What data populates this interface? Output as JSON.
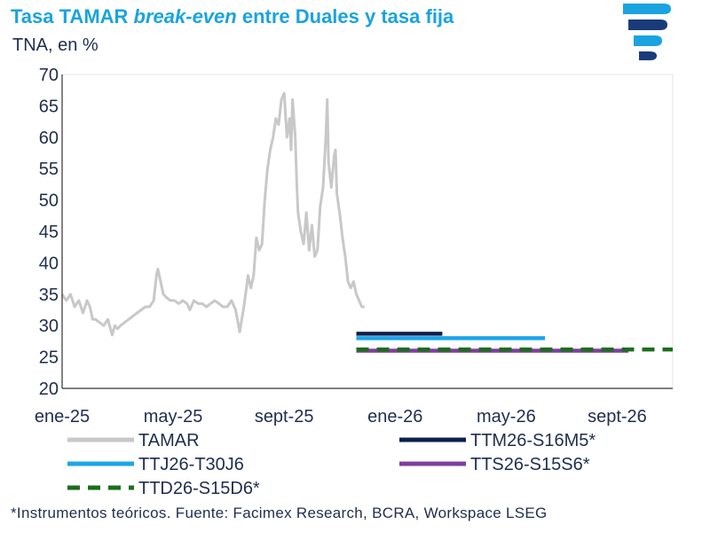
{
  "header": {
    "title_pre": "Tasa TAMAR ",
    "title_em": "break-even",
    "title_post": " entre Duales y tasa fija",
    "subtitle": "TNA, en %",
    "logo_icon": "facimex-logo-icon"
  },
  "footnote": "*Instrumentos teóricos. Fuente: Facimex Research, BCRA, Workspace LSEG",
  "chart_data": {
    "type": "line",
    "title": "Tasa TAMAR break-even entre Duales y tasa fija",
    "ylabel": "TNA, en %",
    "xlabel": "",
    "ylim": [
      20,
      70
    ],
    "yticks": [
      20,
      25,
      30,
      35,
      40,
      45,
      50,
      55,
      60,
      65,
      70
    ],
    "xlim": [
      0,
      22.0
    ],
    "xtick_labels": [
      {
        "label": "ene-25",
        "month": 0
      },
      {
        "label": "may-25",
        "month": 4
      },
      {
        "label": "sept-25",
        "month": 8
      },
      {
        "label": "ene-26",
        "month": 12
      },
      {
        "label": "may-26",
        "month": 16
      },
      {
        "label": "sept-26",
        "month": 20
      }
    ],
    "series": [
      {
        "name": "TAMAR",
        "color": "#c8c8c8",
        "style": "solid",
        "x": [
          0,
          0.15,
          0.3,
          0.45,
          0.6,
          0.75,
          0.9,
          1.0,
          1.1,
          1.2,
          1.35,
          1.5,
          1.65,
          1.8,
          1.9,
          2.0,
          2.1,
          2.25,
          2.4,
          2.55,
          2.7,
          2.85,
          3.0,
          3.15,
          3.3,
          3.4,
          3.45,
          3.55,
          3.65,
          3.75,
          3.9,
          4.05,
          4.2,
          4.35,
          4.5,
          4.6,
          4.75,
          4.9,
          5.05,
          5.2,
          5.35,
          5.5,
          5.65,
          5.8,
          5.95,
          6.1,
          6.25,
          6.4,
          6.55,
          6.7,
          6.8,
          6.9,
          7.0,
          7.1,
          7.2,
          7.3,
          7.4,
          7.5,
          7.6,
          7.7,
          7.8,
          7.9,
          8.0,
          8.1,
          8.2,
          8.25,
          8.3,
          8.4,
          8.45,
          8.5,
          8.6,
          8.7,
          8.8,
          8.9,
          9.0,
          9.1,
          9.2,
          9.3,
          9.4,
          9.5,
          9.55,
          9.6,
          9.7,
          9.8,
          9.85,
          9.9,
          10.0,
          10.1,
          10.2,
          10.3,
          10.4,
          10.5,
          10.6,
          10.7,
          10.8,
          10.9
        ],
        "y": [
          35,
          34,
          35,
          33,
          34,
          32,
          34,
          33,
          31,
          31,
          30.5,
          30,
          31,
          28.5,
          30,
          29.5,
          30,
          30.5,
          31,
          31.5,
          32,
          32.5,
          33,
          33,
          34,
          38,
          39,
          37,
          35,
          34.5,
          34,
          34,
          33.5,
          34,
          33.5,
          32.5,
          34,
          33.5,
          33.5,
          33,
          33.5,
          34,
          33.5,
          33,
          33,
          34,
          32.5,
          29,
          33,
          38,
          36,
          38,
          44,
          42,
          43,
          50,
          55,
          58,
          60,
          63,
          62,
          66,
          67,
          60,
          63,
          58,
          66,
          60,
          53,
          48,
          45,
          43,
          48,
          42,
          46,
          41,
          42,
          49,
          52,
          60,
          66,
          56,
          52,
          57,
          58,
          51,
          48,
          44,
          41,
          37,
          36,
          37,
          35,
          34,
          33,
          33
        ]
      },
      {
        "name": "TTM26-S16M5*",
        "color": "#0e1f4d",
        "style": "solid",
        "x": [
          10.6,
          13.7
        ],
        "y": [
          28.7,
          28.7
        ]
      },
      {
        "name": "TTJ26-T30J6",
        "color": "#1ba6e8",
        "style": "solid",
        "x": [
          10.6,
          17.4
        ],
        "y": [
          28.0,
          28.0
        ]
      },
      {
        "name": "TTS26-S15S6*",
        "color": "#7e3fa0",
        "style": "solid",
        "x": [
          10.6,
          20.4
        ],
        "y": [
          26.0,
          26.0
        ]
      },
      {
        "name": "TTD26-S15D6*",
        "color": "#1b6e1b",
        "style": "dashed",
        "x": [
          10.6,
          22.0
        ],
        "y": [
          26.2,
          26.2
        ]
      }
    ],
    "legend": [
      {
        "label": "TAMAR",
        "color": "#c8c8c8",
        "style": "solid"
      },
      {
        "label": "TTM26-S16M5*",
        "color": "#0e1f4d",
        "style": "solid"
      },
      {
        "label": "TTJ26-T30J6",
        "color": "#1ba6e8",
        "style": "solid"
      },
      {
        "label": "TTS26-S15S6*",
        "color": "#7e3fa0",
        "style": "solid"
      },
      {
        "label": "TTD26-S15D6*",
        "color": "#1b6e1b",
        "style": "dashed"
      }
    ]
  }
}
